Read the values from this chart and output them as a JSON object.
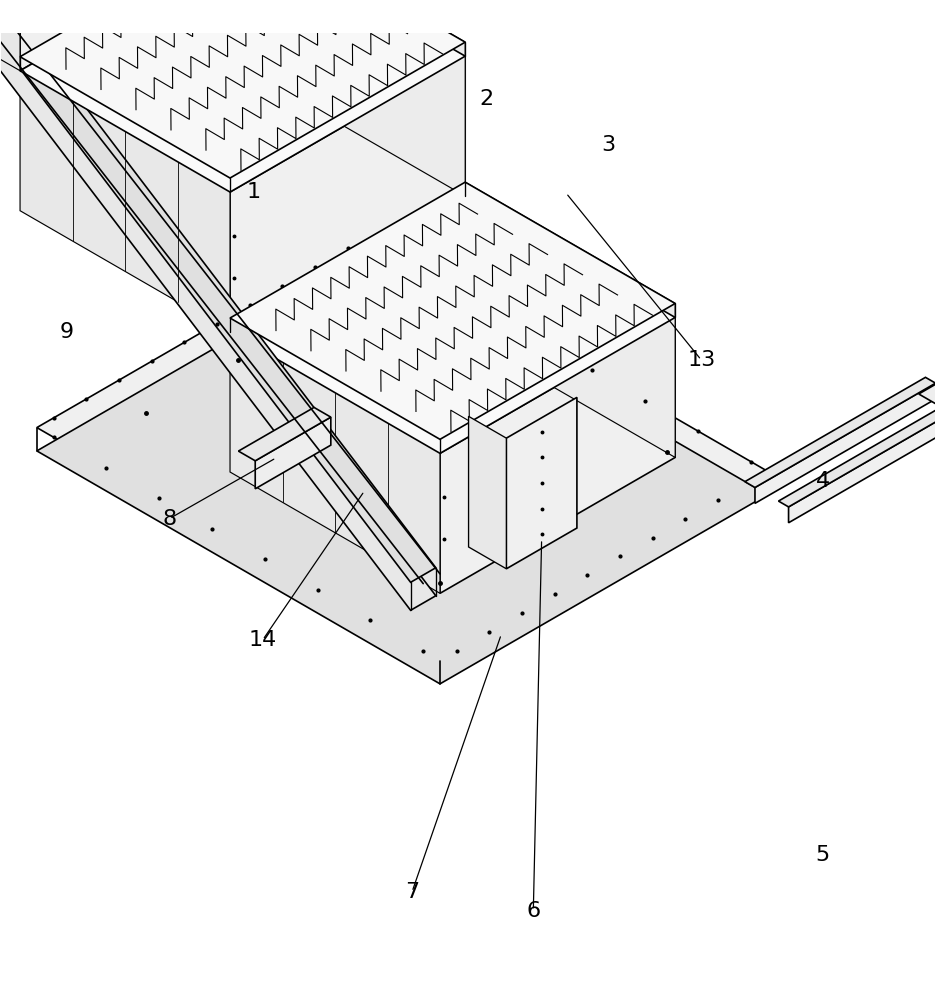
{
  "bg_color": "#ffffff",
  "line_color": "#000000",
  "line_width": 1.2,
  "fig_width": 9.36,
  "fig_height": 10.0,
  "label_fontsize": 16
}
